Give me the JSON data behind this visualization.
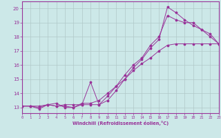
{
  "bg_color": "#cce8e8",
  "grid_color": "#b0c8c8",
  "line_color": "#993399",
  "xlabel": "Windchill (Refroidissement éolien,°C)",
  "xlim": [
    0,
    23
  ],
  "ylim": [
    12.6,
    20.5
  ],
  "yticks": [
    13,
    14,
    15,
    16,
    17,
    18,
    19,
    20
  ],
  "xticks": [
    0,
    1,
    2,
    3,
    4,
    5,
    6,
    7,
    8,
    9,
    10,
    11,
    12,
    13,
    14,
    15,
    16,
    17,
    18,
    19,
    20,
    21,
    22,
    23
  ],
  "series": [
    {
      "x": [
        0,
        1,
        2,
        3,
        4,
        5,
        6,
        7,
        8,
        9,
        10,
        11,
        12,
        13,
        14,
        15,
        16,
        17,
        18,
        19,
        20,
        21,
        22,
        23
      ],
      "y": [
        13.1,
        13.1,
        12.9,
        13.2,
        13.1,
        13.1,
        13.0,
        13.3,
        13.3,
        13.5,
        14.0,
        14.5,
        15.0,
        15.6,
        16.1,
        16.5,
        17.0,
        17.4,
        17.5,
        17.5,
        17.5,
        17.5,
        17.5,
        17.5
      ]
    },
    {
      "x": [
        0,
        1,
        2,
        3,
        4,
        5,
        6,
        7,
        8,
        9,
        10,
        11,
        12,
        13,
        14,
        15,
        16,
        17,
        18,
        19,
        20,
        21,
        22,
        23
      ],
      "y": [
        13.1,
        13.1,
        13.1,
        13.2,
        13.1,
        13.2,
        13.2,
        13.2,
        14.8,
        13.2,
        13.8,
        14.5,
        15.3,
        16.0,
        16.5,
        17.4,
        18.0,
        19.5,
        19.2,
        19.0,
        19.0,
        18.5,
        18.0,
        17.5
      ]
    },
    {
      "x": [
        0,
        1,
        2,
        3,
        4,
        5,
        6,
        7,
        8,
        9,
        10,
        11,
        12,
        13,
        14,
        15,
        16,
        17,
        18,
        19,
        20,
        21,
        22,
        23
      ],
      "y": [
        13.1,
        13.1,
        13.0,
        13.2,
        13.3,
        13.0,
        13.0,
        13.2,
        13.2,
        13.2,
        13.5,
        14.2,
        15.0,
        15.8,
        16.4,
        17.2,
        17.8,
        20.1,
        19.7,
        19.2,
        18.8,
        18.5,
        18.2,
        17.5
      ]
    }
  ]
}
